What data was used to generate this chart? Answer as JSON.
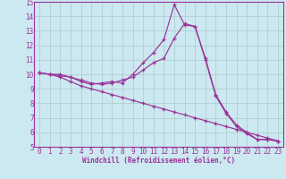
{
  "xlabel": "Windchill (Refroidissement éolien,°C)",
  "bg_color": "#cce8f0",
  "line_color": "#993399",
  "grid_color": "#aacccc",
  "xlim": [
    -0.5,
    23.5
  ],
  "ylim": [
    5,
    15
  ],
  "xticks": [
    0,
    1,
    2,
    3,
    4,
    5,
    6,
    7,
    8,
    9,
    10,
    11,
    12,
    13,
    14,
    15,
    16,
    17,
    18,
    19,
    20,
    21,
    22,
    23
  ],
  "yticks": [
    5,
    6,
    7,
    8,
    9,
    10,
    11,
    12,
    13,
    14,
    15
  ],
  "line1_x": [
    0,
    1,
    2,
    3,
    4,
    5,
    6,
    7,
    8,
    9,
    10,
    11,
    12,
    13,
    14,
    15,
    16,
    17,
    18,
    19,
    20,
    21,
    22,
    23
  ],
  "line1_y": [
    10.1,
    10.0,
    10.0,
    9.8,
    9.5,
    9.3,
    9.4,
    9.5,
    9.4,
    10.0,
    10.8,
    11.5,
    12.4,
    14.8,
    13.4,
    13.3,
    11.1,
    8.6,
    7.4,
    6.5,
    6.0,
    5.5,
    5.5,
    5.4
  ],
  "line2_x": [
    0,
    1,
    2,
    3,
    4,
    5,
    6,
    7,
    8,
    9,
    10,
    11,
    12,
    13,
    14,
    15,
    16,
    17,
    18,
    19,
    20,
    21,
    22,
    23
  ],
  "line2_y": [
    10.1,
    10.0,
    9.9,
    9.8,
    9.6,
    9.4,
    9.3,
    9.4,
    9.6,
    9.8,
    10.3,
    10.8,
    11.1,
    12.5,
    13.5,
    13.3,
    11.0,
    8.5,
    7.3,
    6.4,
    5.9,
    5.5,
    5.5,
    5.4
  ],
  "line3_x": [
    0,
    1,
    2,
    3,
    4,
    5,
    6,
    7,
    8,
    9,
    10,
    11,
    12,
    13,
    14,
    15,
    16,
    17,
    18,
    19,
    20,
    21,
    22,
    23
  ],
  "line3_y": [
    10.1,
    10.0,
    9.8,
    9.5,
    9.2,
    9.0,
    8.8,
    8.6,
    8.4,
    8.2,
    8.0,
    7.8,
    7.6,
    7.4,
    7.2,
    7.0,
    6.8,
    6.6,
    6.4,
    6.2,
    6.0,
    5.8,
    5.6,
    5.4
  ],
  "tick_fontsize": 5.5,
  "xlabel_fontsize": 5.5
}
